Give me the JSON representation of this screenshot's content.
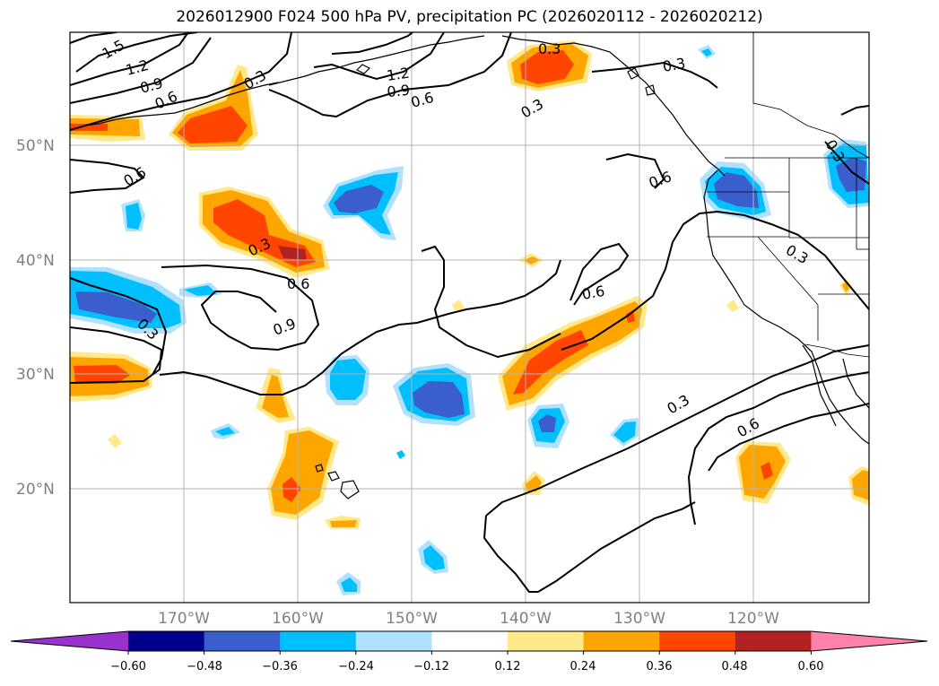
{
  "title": "2026012900 F024 500 hPa PV, precipitation PC (2026020112 - 2026020212)",
  "longitude_labels": [
    "170°W",
    "160°W",
    "150°W",
    "140°W",
    "130°W",
    "120°W"
  ],
  "latitude_labels": [
    "50°N",
    "40°N",
    "30°N",
    "20°N"
  ],
  "colorbar": {
    "colors": [
      "#9932cc",
      "#00008b",
      "#3a5fcd",
      "#00bfff",
      "#b0e2ff",
      "#ffffff",
      "#ffe98a",
      "#ffa500",
      "#ff4500",
      "#b22222",
      "#ff82ab"
    ],
    "tick_labels": [
      "−0.60",
      "−0.48",
      "−0.36",
      "−0.24",
      "−0.12",
      "0.12",
      "0.24",
      "0.36",
      "0.48",
      "0.60"
    ]
  },
  "contour_labels": [
    "1.5",
    "1.2",
    "0.9",
    "0.6",
    "0.3",
    "1.2",
    "0.9",
    "0.6",
    "0.3",
    "0.3",
    "0.6",
    "0.6",
    "0.3",
    "0.6",
    "0.9",
    "0.3",
    "0.6",
    "0.3",
    "0.3",
    "0.6",
    "0.3",
    "0.3"
  ]
}
